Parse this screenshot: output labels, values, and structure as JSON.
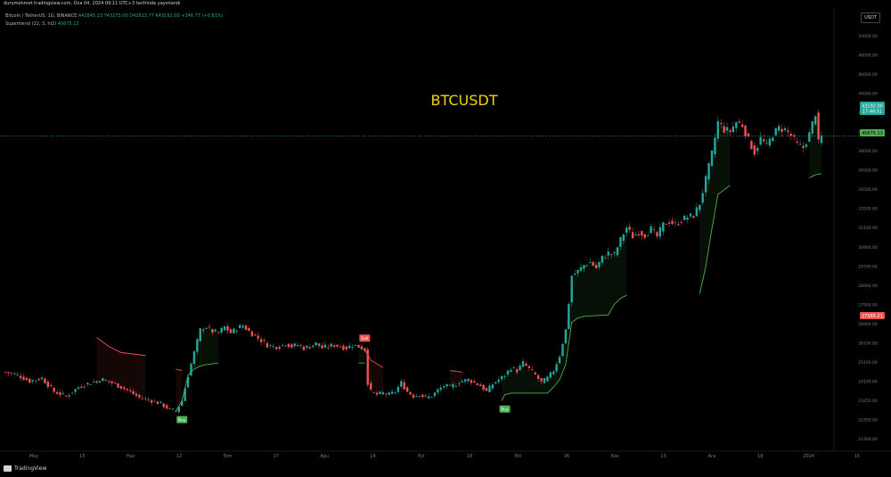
{
  "header": {
    "text": "durumehmet tradingview.com, Oca 04, 2024 09:11 UTC+3 tarihinde yayınlandı"
  },
  "legend": {
    "symbol": "Bitcoin / TetherUS, 1G, BINANCE",
    "ohlc": "A42845.23  Y43273.00  D42613.77  K43192.00  +346.77 (+0.81%)",
    "indicator_name": "Supertrend (22, 3, hl2)",
    "indicator_value": "40675.13",
    "indicator_dots": "◦ ◦ ◦ ◦ ◦ ◦"
  },
  "currency": "USDT",
  "watermark": "BTCUSDT",
  "branding": "TradingView",
  "colors": {
    "bull": "#26a69a",
    "bear": "#ef5350",
    "supertrend_up": "#4caf50",
    "supertrend_down": "#ef5350",
    "watermark": "#f5d30f",
    "background": "#000000"
  },
  "price_tags": {
    "last": {
      "value": "43192.00",
      "timer": "17:48:51"
    },
    "supertrend": "40675.13",
    "red_level": "27565.21"
  },
  "chart_data": {
    "type": "candlestick",
    "title": "BTCUSDT",
    "ylim": [
      22250,
      51500
    ],
    "y_ticks": [
      "50000.00",
      "48000.00",
      "46000.00",
      "44000.00",
      "42000.00",
      "40000.00",
      "38000.00",
      "36500.00",
      "34500.00",
      "33500.00",
      "32100.00",
      "30900.00",
      "29700.00",
      "28900.00",
      "27900.00",
      "26800.00",
      "26100.00",
      "25100.00",
      "24100.00",
      "23250.00",
      "22350.00",
      "21300.00"
    ],
    "x_ticks": [
      "May",
      "15",
      "Haz",
      "12",
      "Tem",
      "17",
      "Ağu",
      "14",
      "Eyl",
      "18",
      "Eki",
      "16",
      "Kas",
      "13",
      "Ara",
      "18",
      "2024",
      "15"
    ],
    "price_path": [
      [
        0,
        27500
      ],
      [
        4,
        27300
      ],
      [
        8,
        26900
      ],
      [
        12,
        27100
      ],
      [
        16,
        26200
      ],
      [
        20,
        25900
      ],
      [
        24,
        26500
      ],
      [
        28,
        26800
      ],
      [
        32,
        27000
      ],
      [
        36,
        26700
      ],
      [
        40,
        26300
      ],
      [
        44,
        25800
      ],
      [
        48,
        25600
      ],
      [
        51,
        25400
      ],
      [
        54,
        25000
      ],
      [
        56,
        24900
      ],
      [
        58,
        25600
      ],
      [
        60,
        27300
      ],
      [
        62,
        28800
      ],
      [
        64,
        30300
      ],
      [
        66,
        30500
      ],
      [
        68,
        30200
      ],
      [
        70,
        30100
      ],
      [
        72,
        30500
      ],
      [
        74,
        30100
      ],
      [
        76,
        30400
      ],
      [
        78,
        30600
      ],
      [
        80,
        30200
      ],
      [
        82,
        29900
      ],
      [
        84,
        29600
      ],
      [
        86,
        29300
      ],
      [
        88,
        29200
      ],
      [
        90,
        29200
      ],
      [
        92,
        29400
      ],
      [
        94,
        29200
      ],
      [
        96,
        29300
      ],
      [
        98,
        29100
      ],
      [
        100,
        29200
      ],
      [
        102,
        29400
      ],
      [
        104,
        29100
      ],
      [
        106,
        29200
      ],
      [
        108,
        29300
      ],
      [
        110,
        29200
      ],
      [
        112,
        29100
      ],
      [
        114,
        29300
      ],
      [
        116,
        29200
      ],
      [
        118,
        29000
      ],
      [
        119,
        26800
      ],
      [
        120,
        26200
      ],
      [
        122,
        26000
      ],
      [
        124,
        26100
      ],
      [
        126,
        26000
      ],
      [
        128,
        26200
      ],
      [
        130,
        26800
      ],
      [
        132,
        26200
      ],
      [
        134,
        25900
      ],
      [
        136,
        26000
      ],
      [
        138,
        25800
      ],
      [
        140,
        25900
      ],
      [
        142,
        26300
      ],
      [
        144,
        26600
      ],
      [
        146,
        26500
      ],
      [
        148,
        26700
      ],
      [
        150,
        26900
      ],
      [
        152,
        27000
      ],
      [
        154,
        26800
      ],
      [
        156,
        26600
      ],
      [
        158,
        26200
      ],
      [
        160,
        26700
      ],
      [
        162,
        27000
      ],
      [
        164,
        27300
      ],
      [
        166,
        27800
      ],
      [
        168,
        27600
      ],
      [
        170,
        28100
      ],
      [
        172,
        27700
      ],
      [
        174,
        27300
      ],
      [
        176,
        26800
      ],
      [
        178,
        27100
      ],
      [
        180,
        27600
      ],
      [
        182,
        28600
      ],
      [
        184,
        30300
      ],
      [
        186,
        33900
      ],
      [
        188,
        34200
      ],
      [
        190,
        34600
      ],
      [
        192,
        34800
      ],
      [
        194,
        34400
      ],
      [
        196,
        35100
      ],
      [
        198,
        35400
      ],
      [
        200,
        35300
      ],
      [
        202,
        36300
      ],
      [
        204,
        37100
      ],
      [
        206,
        36500
      ],
      [
        208,
        36800
      ],
      [
        210,
        36600
      ],
      [
        212,
        37000
      ],
      [
        214,
        36500
      ],
      [
        216,
        37300
      ],
      [
        218,
        37500
      ],
      [
        220,
        37300
      ],
      [
        222,
        37600
      ],
      [
        224,
        37800
      ],
      [
        226,
        37900
      ],
      [
        228,
        38700
      ],
      [
        230,
        40300
      ],
      [
        232,
        42000
      ],
      [
        234,
        44100
      ],
      [
        236,
        43600
      ],
      [
        238,
        43500
      ],
      [
        240,
        44100
      ],
      [
        242,
        43900
      ],
      [
        244,
        42900
      ],
      [
        246,
        42100
      ],
      [
        248,
        43000
      ],
      [
        250,
        42500
      ],
      [
        252,
        43300
      ],
      [
        254,
        43700
      ],
      [
        256,
        43600
      ],
      [
        258,
        43200
      ],
      [
        260,
        42600
      ],
      [
        262,
        42400
      ],
      [
        264,
        43300
      ],
      [
        266,
        44700
      ],
      [
        267,
        42700
      ],
      [
        268,
        43192
      ]
    ],
    "supertrend_up_path": [
      [
        56,
        24900
      ],
      [
        58,
        25600
      ],
      [
        60,
        27300
      ],
      [
        62,
        27700
      ],
      [
        64,
        27900
      ],
      [
        66,
        28000
      ],
      [
        70,
        28100
      ],
      [
        116,
        28100
      ],
      [
        118,
        28100
      ],
      [
        163,
        25600
      ],
      [
        164,
        26000
      ],
      [
        166,
        26100
      ],
      [
        172,
        26100
      ],
      [
        176,
        26100
      ],
      [
        178,
        26100
      ],
      [
        180,
        26500
      ],
      [
        182,
        27000
      ],
      [
        184,
        28000
      ],
      [
        186,
        30800
      ],
      [
        188,
        31100
      ],
      [
        190,
        31200
      ],
      [
        198,
        31300
      ],
      [
        200,
        32000
      ],
      [
        202,
        32400
      ],
      [
        204,
        32600
      ],
      [
        228,
        32700
      ],
      [
        230,
        34500
      ],
      [
        232,
        37000
      ],
      [
        234,
        39300
      ],
      [
        238,
        39900
      ],
      [
        264,
        40400
      ],
      [
        266,
        40600
      ],
      [
        268,
        40675
      ]
    ],
    "supertrend_down_path": [
      [
        0,
        30100
      ],
      [
        30,
        29800
      ],
      [
        34,
        29200
      ],
      [
        38,
        28800
      ],
      [
        46,
        28600
      ],
      [
        56,
        27700
      ],
      [
        58,
        27600
      ],
      [
        118,
        29000
      ],
      [
        120,
        28300
      ],
      [
        124,
        27800
      ],
      [
        146,
        27600
      ],
      [
        150,
        27500
      ],
      [
        170,
        27500
      ]
    ],
    "signals": [
      {
        "label": "Buy",
        "x": 58,
        "y": 24700
      },
      {
        "label": "Sell",
        "x": 118,
        "y": 29400
      },
      {
        "label": "Buy",
        "x": 164,
        "y": 25400
      }
    ],
    "last_price": 43192.0
  }
}
